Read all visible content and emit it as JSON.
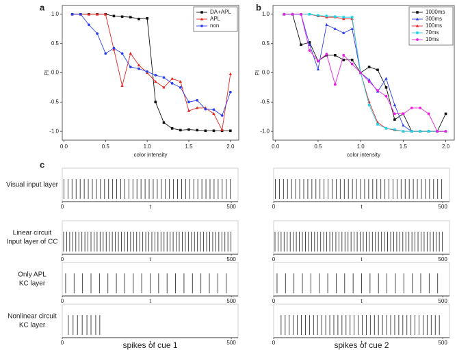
{
  "chart_data": [
    {
      "type": "line",
      "panel": "a",
      "xlabel": "color intensity",
      "ylabel": "PI",
      "x": [
        0.1,
        0.2,
        0.3,
        0.4,
        0.5,
        0.6,
        0.7,
        0.8,
        0.9,
        1.0,
        1.1,
        1.2,
        1.3,
        1.4,
        1.5,
        1.6,
        1.7,
        1.8,
        1.9,
        2.0
      ],
      "xlim": [
        -0.02,
        2.1
      ],
      "ylim": [
        -1.15,
        1.15
      ],
      "xticks": [
        {
          "value": 0,
          "label": "0.0"
        },
        0.5,
        {
          "value": 1,
          "label": "1.0"
        },
        1.5,
        {
          "value": 2,
          "label": "2.0"
        }
      ],
      "yticks": [
        {
          "value": -1,
          "label": "-1.0"
        },
        -0.5,
        {
          "value": 0,
          "label": "0.0"
        },
        0.5,
        {
          "value": 1,
          "label": "1.0"
        }
      ],
      "legend": "upper right",
      "series": [
        {
          "name": "DA+APL",
          "color": "#111111",
          "marker": "square",
          "values": [
            1,
            1,
            1,
            1,
            1,
            0.97,
            0.96,
            0.95,
            0.92,
            0.93,
            -0.5,
            -0.85,
            -0.95,
            -0.98,
            -0.97,
            -0.98,
            -0.99,
            -0.99,
            -0.99,
            -0.99
          ]
        },
        {
          "name": "APL",
          "color": "#e8231f",
          "marker": "triangle",
          "values": [
            1,
            1,
            1,
            1,
            1,
            0.4,
            -0.22,
            0.33,
            0.13,
            0.0,
            -0.15,
            -0.25,
            -0.1,
            -0.15,
            -0.65,
            -0.6,
            -0.6,
            -0.7,
            -0.98,
            -0.02
          ]
        },
        {
          "name": "non",
          "color": "#2b3ff0",
          "marker": "circle",
          "values": [
            1,
            1,
            0.82,
            0.67,
            0.33,
            0.42,
            0.33,
            0.1,
            0.07,
            0.02,
            -0.04,
            -0.08,
            -0.18,
            -0.25,
            -0.5,
            -0.47,
            -0.62,
            -0.63,
            -0.73,
            -0.33
          ]
        }
      ]
    },
    {
      "type": "line",
      "panel": "b",
      "xlabel": "color intensity",
      "ylabel": "PI",
      "x": [
        0.1,
        0.2,
        0.3,
        0.4,
        0.5,
        0.6,
        0.7,
        0.8,
        0.9,
        1.0,
        1.1,
        1.2,
        1.3,
        1.4,
        1.5,
        1.6,
        1.7,
        1.8,
        1.9,
        2.0
      ],
      "xlim": [
        -0.03,
        2.1
      ],
      "ylim": [
        -1.15,
        1.15
      ],
      "xticks": [
        {
          "value": 0,
          "label": "0.0"
        },
        0.5,
        {
          "value": 1,
          "label": "1.0"
        },
        1.5,
        {
          "value": 2,
          "label": "2.0"
        }
      ],
      "yticks": [
        {
          "value": -1,
          "label": "-1.0"
        },
        -0.5,
        {
          "value": 0,
          "label": "0.0"
        },
        0.5,
        {
          "value": 1,
          "label": "1.0"
        }
      ],
      "legend": "upper right",
      "series": [
        {
          "name": "1000ms",
          "color": "#111111",
          "marker": "square",
          "values": [
            1,
            1,
            0.48,
            0.52,
            0.2,
            0.3,
            0.3,
            0.22,
            0.22,
            0.0,
            0.1,
            0.05,
            -0.25,
            -0.8,
            -0.7,
            -1,
            -1,
            -1,
            -1,
            -0.7
          ]
        },
        {
          "name": "300ms",
          "color": "#2b3ff0",
          "marker": "triangle",
          "values": [
            1,
            1,
            1,
            0.48,
            0.06,
            0.82,
            0.75,
            0.68,
            0.75,
            0.0,
            -0.12,
            -0.32,
            -0.1,
            -0.55,
            -0.9,
            -1,
            -1,
            -1,
            -1,
            -1
          ]
        },
        {
          "name": "100ms",
          "color": "#e8231f",
          "marker": "triangle",
          "values": [
            1,
            1,
            1,
            1,
            0.97,
            0.95,
            0.95,
            0.92,
            0.92,
            0.0,
            -0.5,
            -0.85,
            -0.95,
            -0.98,
            -1,
            -1,
            -1,
            -1,
            -1,
            -1
          ]
        },
        {
          "name": "70ms",
          "color": "#22d3e6",
          "marker": "square",
          "values": [
            1,
            1,
            1,
            1,
            0.98,
            0.97,
            0.96,
            0.95,
            0.95,
            0.0,
            -0.55,
            -0.88,
            -0.95,
            -0.97,
            -1,
            -1,
            -1,
            -1,
            -1,
            -1
          ]
        },
        {
          "name": "10ms",
          "color": "#e820e0",
          "marker": "circle",
          "values": [
            1,
            1,
            1,
            0.38,
            0.2,
            0.32,
            -0.2,
            0.3,
            0.15,
            0.0,
            -0.15,
            -0.3,
            -0.4,
            -0.7,
            -0.7,
            -0.6,
            -0.6,
            -0.7,
            -1,
            -1
          ]
        }
      ]
    },
    {
      "type": "raster",
      "panel": "c",
      "xlabel": "t",
      "xlim": [
        0,
        520
      ],
      "xticks": [
        0,
        500
      ],
      "columns": [
        "spikes of cue 1",
        "spikes of cue 2"
      ],
      "rows": [
        {
          "label_lines": [
            "Visual input layer"
          ],
          "cue1": [
            5,
            17,
            29,
            41,
            53,
            65,
            77,
            89,
            101,
            113,
            125,
            137,
            149,
            161,
            173,
            185,
            197,
            209,
            221,
            233,
            245,
            257,
            269,
            281,
            293,
            305,
            317,
            329,
            341,
            353,
            365,
            377,
            389,
            401,
            413,
            425,
            437,
            449,
            461,
            473,
            485,
            497
          ],
          "cue2": [
            5,
            17,
            29,
            41,
            53,
            65,
            77,
            89,
            101,
            113,
            125,
            137,
            149,
            161,
            173,
            185,
            197,
            209,
            221,
            233,
            245,
            257,
            269,
            281,
            293,
            305,
            317,
            329,
            341,
            353,
            365,
            377,
            389,
            401,
            413,
            425,
            437,
            449,
            461,
            473,
            485,
            497
          ]
        },
        {
          "label_lines": [
            "Linear circuit",
            "Input layer of CC"
          ],
          "cue1": [
            4,
            13,
            22,
            31,
            40,
            49,
            58,
            67,
            76,
            85,
            94,
            103,
            112,
            121,
            130,
            139,
            148,
            157,
            166,
            175,
            184,
            193,
            202,
            211,
            220,
            229,
            238,
            247,
            256,
            265,
            274,
            283,
            292,
            301,
            310,
            319,
            328,
            337,
            346,
            355,
            364,
            373,
            382,
            391,
            400,
            409,
            418,
            427,
            436,
            445,
            454,
            463,
            472,
            481,
            490,
            499
          ],
          "cue2": [
            4,
            13,
            22,
            31,
            40,
            49,
            58,
            67,
            76,
            85,
            94,
            103,
            112,
            121,
            130,
            139,
            148,
            157,
            166,
            175,
            184,
            193,
            202,
            211,
            220,
            229,
            238,
            247,
            256,
            265,
            274,
            283,
            292,
            301,
            310,
            319,
            328,
            337,
            346,
            355,
            364,
            373,
            382,
            391,
            400,
            409,
            418,
            427,
            436,
            445,
            454,
            463,
            472,
            481,
            490,
            499
          ]
        },
        {
          "label_lines": [
            "Only APL",
            "KC layer"
          ],
          "cue1": [
            10,
            35,
            60,
            85,
            110,
            135,
            160,
            185,
            210,
            235,
            260,
            285,
            310,
            335,
            360,
            385,
            410,
            435,
            460,
            485
          ],
          "cue2": [
            10,
            35,
            60,
            85,
            110,
            135,
            160,
            185,
            210,
            235,
            260,
            285,
            310,
            335,
            360,
            385,
            410,
            435,
            460,
            485
          ]
        },
        {
          "label_lines": [
            "Nonlinear circuit",
            "KC layer"
          ],
          "cue1": [
            18,
            32,
            45,
            59,
            73,
            85,
            99,
            111
          ],
          "cue2": [
            22,
            34,
            46,
            58,
            70,
            82,
            94,
            106,
            118,
            130,
            142,
            154,
            166,
            178,
            190,
            202,
            214,
            226,
            238,
            250,
            262,
            274,
            286,
            298,
            310,
            322,
            334,
            346,
            358,
            370,
            382,
            394,
            406,
            418,
            430,
            442,
            454,
            466,
            478,
            490
          ]
        }
      ]
    }
  ]
}
